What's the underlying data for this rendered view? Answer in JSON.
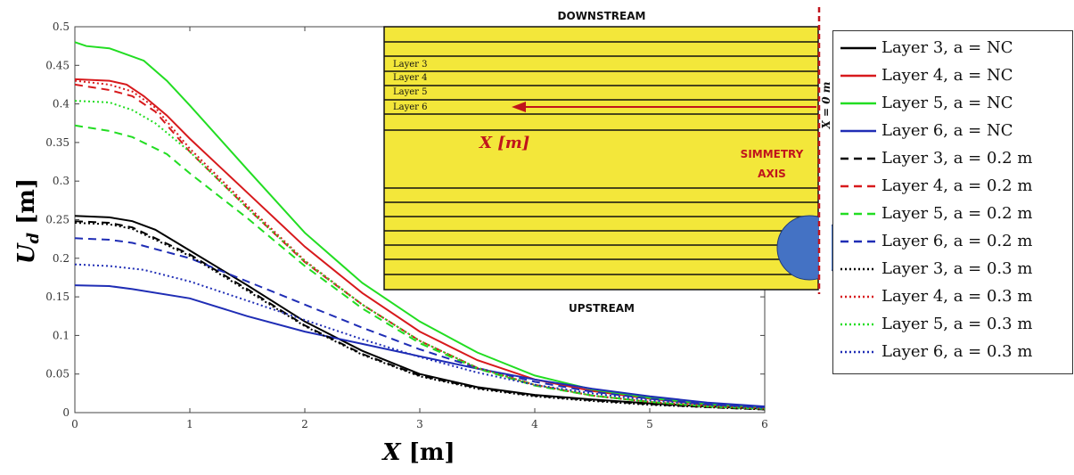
{
  "chart_data": {
    "type": "line",
    "xlabel": "X",
    "xlabel_unit": "[m]",
    "ylabel": "U",
    "ylabel_sub": "d",
    "ylabel_unit": "[m]",
    "xlim": [
      0,
      6
    ],
    "ylim": [
      0,
      0.5
    ],
    "xticks": [
      0,
      1,
      2,
      3,
      4,
      5,
      6
    ],
    "xtick_labels": [
      "0",
      "1",
      "2",
      "3",
      "4",
      "5",
      "6"
    ],
    "yticks": [
      0,
      0.05,
      0.1,
      0.15,
      0.2,
      0.25,
      0.3,
      0.35,
      0.4,
      0.45,
      0.5
    ],
    "ytick_labels": [
      "0",
      "0.05",
      "0.1",
      "0.15",
      "0.2",
      "0.25",
      "0.3",
      "0.35",
      "0.4",
      "0.45",
      "0.5"
    ],
    "grid": false,
    "legend_position": "right-outside",
    "series": [
      {
        "name": "Layer 3, a = NC",
        "color": "#000000",
        "style": "solid",
        "x": [
          0,
          0.3,
          0.5,
          0.7,
          1,
          1.5,
          2,
          2.5,
          3,
          3.5,
          4,
          4.5,
          5,
          5.5,
          6
        ],
        "values": [
          0.255,
          0.253,
          0.248,
          0.237,
          0.21,
          0.165,
          0.118,
          0.08,
          0.05,
          0.033,
          0.023,
          0.017,
          0.012,
          0.008,
          0.005
        ]
      },
      {
        "name": "Layer 4, a = NC",
        "color": "#d7191c",
        "style": "solid",
        "x": [
          0,
          0.3,
          0.45,
          0.6,
          0.8,
          1,
          1.5,
          2,
          2.5,
          3,
          3.5,
          4,
          4.5,
          5,
          5.5,
          6
        ],
        "values": [
          0.432,
          0.43,
          0.425,
          0.41,
          0.385,
          0.355,
          0.285,
          0.215,
          0.155,
          0.105,
          0.068,
          0.043,
          0.028,
          0.018,
          0.01,
          0.006
        ]
      },
      {
        "name": "Layer 5, a = NC",
        "color": "#22dd22",
        "style": "solid",
        "x": [
          0,
          0.1,
          0.3,
          0.6,
          0.8,
          1,
          1.5,
          2,
          2.5,
          3,
          3.5,
          4,
          4.5,
          5,
          5.5,
          6
        ],
        "values": [
          0.48,
          0.475,
          0.472,
          0.456,
          0.43,
          0.398,
          0.315,
          0.233,
          0.168,
          0.118,
          0.078,
          0.048,
          0.03,
          0.019,
          0.011,
          0.007
        ]
      },
      {
        "name": "Layer 6, a = NC",
        "color": "#1f2db5",
        "style": "solid",
        "x": [
          0,
          0.3,
          0.5,
          1,
          1.5,
          2,
          2.5,
          3,
          3.5,
          4,
          4.5,
          5,
          5.5,
          6
        ],
        "values": [
          0.165,
          0.164,
          0.16,
          0.148,
          0.125,
          0.105,
          0.089,
          0.073,
          0.057,
          0.043,
          0.031,
          0.021,
          0.013,
          0.008
        ]
      },
      {
        "name": "Layer 3, a = 0.2 m",
        "color": "#000000",
        "style": "dashed",
        "x": [
          0,
          0.3,
          0.5,
          1,
          1.5,
          2,
          2.5,
          3,
          3.5,
          4,
          4.5,
          5,
          5.5,
          6
        ],
        "values": [
          0.248,
          0.246,
          0.24,
          0.205,
          0.16,
          0.113,
          0.076,
          0.048,
          0.032,
          0.022,
          0.016,
          0.011,
          0.007,
          0.004
        ]
      },
      {
        "name": "Layer 4, a = 0.2 m",
        "color": "#d7191c",
        "style": "dashed",
        "x": [
          0,
          0.3,
          0.5,
          0.7,
          1,
          1.5,
          2,
          2.5,
          3,
          3.5,
          4,
          4.5,
          5,
          5.5,
          6
        ],
        "values": [
          0.425,
          0.418,
          0.41,
          0.39,
          0.338,
          0.265,
          0.195,
          0.14,
          0.093,
          0.058,
          0.036,
          0.022,
          0.014,
          0.008,
          0.005
        ]
      },
      {
        "name": "Layer 5, a = 0.2 m",
        "color": "#22dd22",
        "style": "dashed",
        "x": [
          0,
          0.3,
          0.5,
          0.8,
          1,
          1.5,
          2,
          2.5,
          3,
          3.5,
          4,
          4.5,
          5,
          5.5,
          6
        ],
        "values": [
          0.372,
          0.365,
          0.357,
          0.335,
          0.31,
          0.252,
          0.19,
          0.135,
          0.09,
          0.057,
          0.035,
          0.022,
          0.014,
          0.008,
          0.005
        ]
      },
      {
        "name": "Layer 6, a = 0.2 m",
        "color": "#1f2db5",
        "style": "dashed",
        "x": [
          0,
          0.3,
          0.5,
          1,
          1.5,
          2,
          2.5,
          3,
          3.5,
          4,
          4.5,
          5,
          5.5,
          6
        ],
        "values": [
          0.226,
          0.224,
          0.22,
          0.2,
          0.17,
          0.14,
          0.11,
          0.082,
          0.058,
          0.04,
          0.027,
          0.018,
          0.011,
          0.007
        ]
      },
      {
        "name": "Layer 3, a = 0.3 m",
        "color": "#000000",
        "style": "dotted",
        "x": [
          0,
          0.3,
          0.5,
          1,
          1.5,
          2,
          2.5,
          3,
          3.5,
          4,
          4.5,
          5,
          5.5,
          6
        ],
        "values": [
          0.246,
          0.244,
          0.238,
          0.203,
          0.158,
          0.112,
          0.075,
          0.047,
          0.031,
          0.021,
          0.015,
          0.01,
          0.007,
          0.004
        ]
      },
      {
        "name": "Layer 4, a = 0.3 m",
        "color": "#d7191c",
        "style": "dotted",
        "x": [
          0,
          0.3,
          0.5,
          0.7,
          1,
          1.5,
          2,
          2.5,
          3,
          3.5,
          4,
          4.5,
          5,
          5.5,
          6
        ],
        "values": [
          0.43,
          0.425,
          0.416,
          0.395,
          0.342,
          0.268,
          0.197,
          0.14,
          0.093,
          0.058,
          0.036,
          0.022,
          0.014,
          0.008,
          0.005
        ]
      },
      {
        "name": "Layer 5, a = 0.3 m",
        "color": "#22dd22",
        "style": "dotted",
        "x": [
          0,
          0.3,
          0.5,
          0.7,
          1,
          1.5,
          2,
          2.5,
          3,
          3.5,
          4,
          4.5,
          5,
          5.5,
          6
        ],
        "values": [
          0.404,
          0.402,
          0.392,
          0.375,
          0.338,
          0.265,
          0.196,
          0.14,
          0.093,
          0.058,
          0.036,
          0.022,
          0.014,
          0.008,
          0.005
        ]
      },
      {
        "name": "Layer 6, a = 0.3 m",
        "color": "#1f2db5",
        "style": "dotted",
        "x": [
          0,
          0.3,
          0.6,
          1,
          1.5,
          2,
          2.5,
          3,
          3.5,
          4,
          4.5,
          5,
          5.5,
          6
        ],
        "values": [
          0.192,
          0.19,
          0.185,
          0.17,
          0.145,
          0.12,
          0.095,
          0.072,
          0.052,
          0.036,
          0.025,
          0.016,
          0.01,
          0.006
        ]
      }
    ],
    "legend_labels": [
      "Layer 3, a = NC",
      "Layer 4, a = NC",
      "Layer 5, a = NC",
      "Layer 6, a = NC",
      "Layer 3, a = 0.2 m",
      "Layer 4, a = 0.2 m",
      "Layer 5, a = 0.2 m",
      "Layer 6, a = 0.2 m",
      "Layer 3, a = 0.3 m",
      "Layer 4, a = 0.3 m",
      "Layer 5, a = 0.3 m",
      "Layer 6, a = 0.3 m"
    ]
  },
  "inset": {
    "top_label": "DOWNSTREAM",
    "bottom_label": "UPSTREAM",
    "layer_labels": [
      "Layer 3",
      "Layer 4",
      "Layer 5",
      "Layer 6"
    ],
    "arrow_label": "X [m]",
    "axis_label_line1": "SIMMETRY",
    "axis_label_line2": "AXIS",
    "x0_label": "X = 0 m",
    "fill_color": "#f3e73a",
    "circle_color": "#4472c4",
    "arrow_color": "#c0141c"
  }
}
